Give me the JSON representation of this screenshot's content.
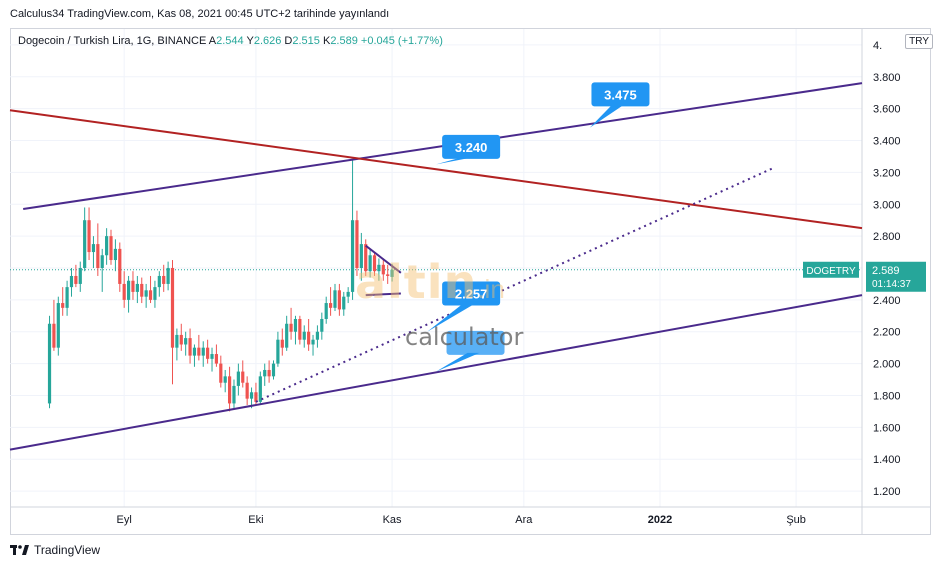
{
  "header": {
    "publish_text": "Calculus34 TradingView.com, Kas 08, 2021 00:45 UTC+2 tarihinde yayınlandı"
  },
  "legend": {
    "symbol": "Dogecoin / Turkish Lira, 1G, BINANCE",
    "open_label": "A",
    "open": "2.544",
    "high_label": "Y",
    "high": "2.626",
    "low_label": "D",
    "low": "2.515",
    "close_label": "K",
    "close": "2.589",
    "change": "+0.045 (+1.77%)"
  },
  "currency_badge": "TRY",
  "footer": {
    "brand": "TradingView"
  },
  "watermark": {
    "main": "altin",
    "suffix": ".in",
    "sub": "calculator"
  },
  "colors": {
    "up": "#26a69a",
    "down": "#ef5350",
    "purple": "#4a2a8c",
    "red_line": "#b22222",
    "callout": "#2196f3",
    "grid": "#f0f3fa",
    "axis_text": "#131722"
  },
  "chart_data": {
    "type": "candlestick",
    "ylim": [
      1.1,
      4.1
    ],
    "y_ticks": [
      "1.200",
      "1.400",
      "1.600",
      "1.800",
      "2.000",
      "2.200",
      "2.400",
      "2.600",
      "2.800",
      "3.000",
      "3.200",
      "3.400",
      "3.600",
      "3.800",
      "4."
    ],
    "y_tick_values": [
      1.2,
      1.4,
      1.6,
      1.8,
      2.0,
      2.2,
      2.4,
      2.6,
      2.8,
      3.0,
      3.2,
      3.4,
      3.6,
      3.8,
      4.0
    ],
    "x_ticks": [
      {
        "label": "Eyl",
        "day": 17
      },
      {
        "label": "Eki",
        "day": 47
      },
      {
        "label": "Kas",
        "day": 78
      },
      {
        "label": "Ara",
        "day": 108
      },
      {
        "label": "2022",
        "day": 139
      },
      {
        "label": "Şub",
        "day": 170
      }
    ],
    "x_range": [
      -9,
      185
    ],
    "last_price": {
      "label": "DOGETRY",
      "value": "2.589",
      "countdown": "01:14:37",
      "y": 2.589
    },
    "candles": [
      {
        "o": 1.75,
        "h": 2.3,
        "l": 1.72,
        "c": 2.25
      },
      {
        "o": 2.25,
        "h": 2.4,
        "l": 2.08,
        "c": 2.1
      },
      {
        "o": 2.1,
        "h": 2.42,
        "l": 2.05,
        "c": 2.38
      },
      {
        "o": 2.38,
        "h": 2.48,
        "l": 2.3,
        "c": 2.35
      },
      {
        "o": 2.35,
        "h": 2.52,
        "l": 2.3,
        "c": 2.48
      },
      {
        "o": 2.48,
        "h": 2.6,
        "l": 2.42,
        "c": 2.55
      },
      {
        "o": 2.55,
        "h": 2.62,
        "l": 2.48,
        "c": 2.5
      },
      {
        "o": 2.5,
        "h": 2.64,
        "l": 2.45,
        "c": 2.6
      },
      {
        "o": 2.6,
        "h": 2.98,
        "l": 2.58,
        "c": 2.9
      },
      {
        "o": 2.9,
        "h": 2.98,
        "l": 2.65,
        "c": 2.7
      },
      {
        "o": 2.7,
        "h": 2.8,
        "l": 2.6,
        "c": 2.75
      },
      {
        "o": 2.75,
        "h": 2.88,
        "l": 2.55,
        "c": 2.6
      },
      {
        "o": 2.6,
        "h": 2.72,
        "l": 2.45,
        "c": 2.68
      },
      {
        "o": 2.68,
        "h": 2.85,
        "l": 2.62,
        "c": 2.8
      },
      {
        "o": 2.8,
        "h": 2.84,
        "l": 2.62,
        "c": 2.65
      },
      {
        "o": 2.65,
        "h": 2.78,
        "l": 2.58,
        "c": 2.72
      },
      {
        "o": 2.72,
        "h": 2.76,
        "l": 2.45,
        "c": 2.5
      },
      {
        "o": 2.5,
        "h": 2.58,
        "l": 2.35,
        "c": 2.4
      },
      {
        "o": 2.4,
        "h": 2.55,
        "l": 2.32,
        "c": 2.52
      },
      {
        "o": 2.52,
        "h": 2.58,
        "l": 2.4,
        "c": 2.45
      },
      {
        "o": 2.45,
        "h": 2.55,
        "l": 2.38,
        "c": 2.5
      },
      {
        "o": 2.5,
        "h": 2.54,
        "l": 2.38,
        "c": 2.42
      },
      {
        "o": 2.42,
        "h": 2.5,
        "l": 2.35,
        "c": 2.46
      },
      {
        "o": 2.46,
        "h": 2.55,
        "l": 2.38,
        "c": 2.4
      },
      {
        "o": 2.4,
        "h": 2.52,
        "l": 2.35,
        "c": 2.48
      },
      {
        "o": 2.48,
        "h": 2.58,
        "l": 2.42,
        "c": 2.55
      },
      {
        "o": 2.55,
        "h": 2.62,
        "l": 2.45,
        "c": 2.5
      },
      {
        "o": 2.5,
        "h": 2.64,
        "l": 2.46,
        "c": 2.6
      },
      {
        "o": 2.6,
        "h": 2.65,
        "l": 1.87,
        "c": 2.1
      },
      {
        "o": 2.1,
        "h": 2.22,
        "l": 2.02,
        "c": 2.18
      },
      {
        "o": 2.18,
        "h": 2.25,
        "l": 2.08,
        "c": 2.12
      },
      {
        "o": 2.12,
        "h": 2.2,
        "l": 2.05,
        "c": 2.16
      },
      {
        "o": 2.16,
        "h": 2.22,
        "l": 2.0,
        "c": 2.05
      },
      {
        "o": 2.05,
        "h": 2.12,
        "l": 1.98,
        "c": 2.1
      },
      {
        "o": 2.1,
        "h": 2.18,
        "l": 2.02,
        "c": 2.05
      },
      {
        "o": 2.05,
        "h": 2.14,
        "l": 1.98,
        "c": 2.1
      },
      {
        "o": 2.1,
        "h": 2.15,
        "l": 2.0,
        "c": 2.03
      },
      {
        "o": 2.03,
        "h": 2.1,
        "l": 1.95,
        "c": 2.06
      },
      {
        "o": 2.06,
        "h": 2.12,
        "l": 1.98,
        "c": 2.0
      },
      {
        "o": 2.0,
        "h": 2.05,
        "l": 1.85,
        "c": 1.88
      },
      {
        "o": 1.88,
        "h": 1.96,
        "l": 1.82,
        "c": 1.92
      },
      {
        "o": 1.92,
        "h": 1.98,
        "l": 1.7,
        "c": 1.75
      },
      {
        "o": 1.75,
        "h": 1.9,
        "l": 1.72,
        "c": 1.86
      },
      {
        "o": 1.86,
        "h": 2.0,
        "l": 1.8,
        "c": 1.95
      },
      {
        "o": 1.95,
        "h": 2.02,
        "l": 1.85,
        "c": 1.88
      },
      {
        "o": 1.88,
        "h": 1.92,
        "l": 1.74,
        "c": 1.78
      },
      {
        "o": 1.78,
        "h": 1.85,
        "l": 1.72,
        "c": 1.82
      },
      {
        "o": 1.82,
        "h": 1.88,
        "l": 1.74,
        "c": 1.76
      },
      {
        "o": 1.76,
        "h": 1.95,
        "l": 1.74,
        "c": 1.92
      },
      {
        "o": 1.92,
        "h": 2.0,
        "l": 1.86,
        "c": 1.96
      },
      {
        "o": 1.96,
        "h": 2.02,
        "l": 1.88,
        "c": 1.92
      },
      {
        "o": 1.92,
        "h": 2.02,
        "l": 1.9,
        "c": 2.0
      },
      {
        "o": 2.0,
        "h": 2.2,
        "l": 1.98,
        "c": 2.15
      },
      {
        "o": 2.15,
        "h": 2.22,
        "l": 2.05,
        "c": 2.1
      },
      {
        "o": 2.1,
        "h": 2.3,
        "l": 2.08,
        "c": 2.25
      },
      {
        "o": 2.25,
        "h": 2.35,
        "l": 2.15,
        "c": 2.2
      },
      {
        "o": 2.2,
        "h": 2.3,
        "l": 2.12,
        "c": 2.28
      },
      {
        "o": 2.28,
        "h": 2.3,
        "l": 2.12,
        "c": 2.15
      },
      {
        "o": 2.15,
        "h": 2.24,
        "l": 2.1,
        "c": 2.2
      },
      {
        "o": 2.2,
        "h": 2.28,
        "l": 2.08,
        "c": 2.12
      },
      {
        "o": 2.12,
        "h": 2.18,
        "l": 2.05,
        "c": 2.15
      },
      {
        "o": 2.15,
        "h": 2.24,
        "l": 2.1,
        "c": 2.2
      },
      {
        "o": 2.2,
        "h": 2.32,
        "l": 2.15,
        "c": 2.28
      },
      {
        "o": 2.28,
        "h": 2.42,
        "l": 2.25,
        "c": 2.38
      },
      {
        "o": 2.38,
        "h": 2.48,
        "l": 2.3,
        "c": 2.35
      },
      {
        "o": 2.35,
        "h": 2.5,
        "l": 2.33,
        "c": 2.46
      },
      {
        "o": 2.46,
        "h": 2.5,
        "l": 2.3,
        "c": 2.34
      },
      {
        "o": 2.34,
        "h": 2.45,
        "l": 2.3,
        "c": 2.42
      },
      {
        "o": 2.42,
        "h": 2.48,
        "l": 2.38,
        "c": 2.45
      },
      {
        "o": 2.45,
        "h": 3.28,
        "l": 2.4,
        "c": 2.9
      },
      {
        "o": 2.9,
        "h": 2.96,
        "l": 2.55,
        "c": 2.6
      },
      {
        "o": 2.6,
        "h": 2.82,
        "l": 2.52,
        "c": 2.75
      },
      {
        "o": 2.75,
        "h": 2.78,
        "l": 2.55,
        "c": 2.58
      },
      {
        "o": 2.58,
        "h": 2.72,
        "l": 2.54,
        "c": 2.68
      },
      {
        "o": 2.68,
        "h": 2.7,
        "l": 2.55,
        "c": 2.58
      },
      {
        "o": 2.58,
        "h": 2.66,
        "l": 2.52,
        "c": 2.62
      },
      {
        "o": 2.62,
        "h": 2.66,
        "l": 2.52,
        "c": 2.56
      },
      {
        "o": 2.56,
        "h": 2.62,
        "l": 2.5,
        "c": 2.55
      },
      {
        "o": 2.544,
        "h": 2.626,
        "l": 2.515,
        "c": 2.589
      }
    ],
    "lines": [
      {
        "name": "upper-channel-line",
        "style": "solid",
        "color": "purple",
        "from": [
          -6,
          2.97
        ],
        "to": [
          185,
          3.76
        ]
      },
      {
        "name": "lower-channel-line",
        "style": "solid",
        "color": "purple",
        "from": [
          -9,
          1.46
        ],
        "to": [
          185,
          2.43
        ]
      },
      {
        "name": "red-resistance-line",
        "style": "solid",
        "color": "red_line",
        "from": [
          -9,
          3.59
        ],
        "to": [
          185,
          2.85
        ]
      },
      {
        "name": "dotted-trend-line",
        "style": "dotted",
        "color": "purple",
        "from": [
          47,
          1.76
        ],
        "to": [
          165,
          3.23
        ]
      },
      {
        "name": "wedge-upper-line",
        "style": "solid",
        "color": "purple",
        "from": [
          72,
          2.74
        ],
        "to": [
          80,
          2.57
        ]
      },
      {
        "name": "wedge-lower-line",
        "style": "solid",
        "color": "purple",
        "from": [
          72,
          2.43
        ],
        "to": [
          80,
          2.44
        ]
      }
    ],
    "callouts": [
      {
        "name": "callout-3240",
        "text": "3.240",
        "box": [
          96,
          3.36
        ],
        "tip": [
          88,
          3.25
        ]
      },
      {
        "name": "callout-3475",
        "text": "3.475",
        "box": [
          130,
          3.69
        ],
        "tip": [
          123,
          3.48
        ]
      },
      {
        "name": "callout-2257",
        "text": "2.257",
        "box": [
          96,
          2.44
        ],
        "tip": [
          86,
          2.2
        ]
      },
      {
        "name": "callout-lower",
        "text": "",
        "box": [
          97,
          2.13
        ],
        "tip": [
          88,
          1.95
        ]
      }
    ]
  }
}
